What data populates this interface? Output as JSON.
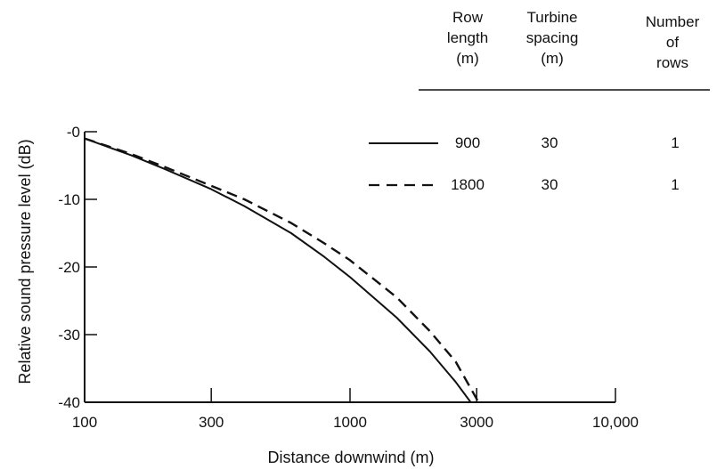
{
  "chart_data": {
    "type": "line",
    "title": "",
    "xlabel": "Distance downwind (m)",
    "ylabel": "Relative sound pressure level (dB)",
    "x_scale": "log",
    "xlim": [
      100,
      10000
    ],
    "ylim": [
      -40,
      0
    ],
    "x_ticks": [
      100,
      300,
      1000,
      3000,
      10000
    ],
    "x_tick_labels": [
      "100",
      "300",
      "1000",
      "3000",
      "10,000"
    ],
    "y_ticks": [
      0,
      -10,
      -20,
      -30,
      -40
    ],
    "y_tick_labels": [
      "-0",
      "-10",
      "-20",
      "-30",
      "-40"
    ],
    "grid": false,
    "legend_placement": "top-right",
    "legend_table": {
      "headers": [
        "Row length (m)",
        "Turbine spacing (m)",
        "Number of rows"
      ],
      "header_lines": [
        [
          "Row",
          "length",
          "(m)"
        ],
        [
          "Turbine",
          "spacing",
          "(m)"
        ],
        [
          "Number",
          "of",
          "rows"
        ]
      ],
      "rows": [
        {
          "style": "solid",
          "row_length": "900",
          "turbine_spacing": "30",
          "number_of_rows": "1"
        },
        {
          "style": "dashed",
          "row_length": "1800",
          "turbine_spacing": "30",
          "number_of_rows": "1"
        }
      ]
    },
    "series": [
      {
        "style": "solid",
        "x": [
          100,
          150,
          200,
          300,
          400,
          600,
          800,
          1000,
          1500,
          2000,
          2500,
          2850
        ],
        "y": [
          -1,
          -3.5,
          -5.5,
          -8.5,
          -11,
          -15,
          -18.5,
          -21.5,
          -27.5,
          -32.5,
          -37,
          -40
        ]
      },
      {
        "style": "dashed",
        "x": [
          100,
          150,
          200,
          300,
          400,
          600,
          800,
          1000,
          1500,
          2000,
          2500,
          3050
        ],
        "y": [
          -1,
          -3.3,
          -5.2,
          -8,
          -10,
          -13.5,
          -16.5,
          -19,
          -24.5,
          -29.5,
          -34,
          -40
        ]
      }
    ]
  }
}
